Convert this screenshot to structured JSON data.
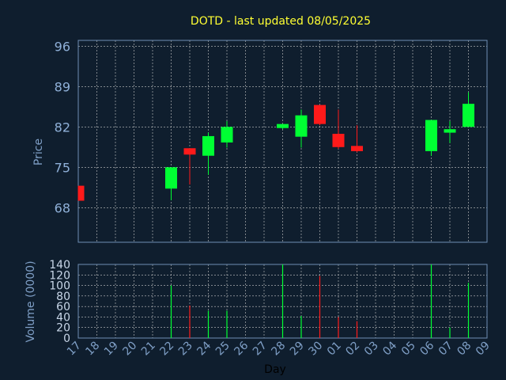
{
  "title": "DOTD - last updated 08/05/2025",
  "colors": {
    "background": "#0f1e2e",
    "up": "#00ff33",
    "down": "#ff1a1a",
    "grid": "#c8c8c8",
    "axis": "#6f8fb4",
    "title": "#ffff33"
  },
  "chart_data": [
    {
      "type": "candlestick",
      "ylabel": "Price",
      "ylim": [
        62,
        97
      ],
      "yticks": [
        68,
        75,
        82,
        89,
        96
      ],
      "grid": true,
      "categories": [
        "17",
        "18",
        "19",
        "20",
        "21",
        "22",
        "23",
        "24",
        "25",
        "26",
        "27",
        "28",
        "29",
        "30",
        "01",
        "02",
        "03",
        "04",
        "05",
        "06",
        "07",
        "08",
        "09"
      ],
      "candles": [
        {
          "day": "17",
          "open": 71.8,
          "close": 69.2,
          "high": 71.8,
          "low": 69.2
        },
        {
          "day": "22",
          "open": 71.3,
          "close": 75.0,
          "high": 75.0,
          "low": 69.3
        },
        {
          "day": "23",
          "open": 78.3,
          "close": 77.2,
          "high": 78.3,
          "low": 72.0
        },
        {
          "day": "24",
          "open": 77.0,
          "close": 80.4,
          "high": 81.0,
          "low": 73.7
        },
        {
          "day": "25",
          "open": 79.3,
          "close": 82.0,
          "high": 83.0,
          "low": 78.4
        },
        {
          "day": "28",
          "open": 81.8,
          "close": 82.5,
          "high": 82.5,
          "low": 81.6
        },
        {
          "day": "29",
          "open": 80.3,
          "close": 84.0,
          "high": 85.0,
          "low": 78.4
        },
        {
          "day": "30",
          "open": 85.8,
          "close": 82.5,
          "high": 85.8,
          "low": 82.3
        },
        {
          "day": "01",
          "open": 80.8,
          "close": 78.5,
          "high": 85.0,
          "low": 78.2
        },
        {
          "day": "02",
          "open": 78.7,
          "close": 77.8,
          "high": 82.3,
          "low": 77.6
        },
        {
          "day": "06",
          "open": 77.8,
          "close": 83.2,
          "high": 83.2,
          "low": 77.0
        },
        {
          "day": "07",
          "open": 81.0,
          "close": 81.6,
          "high": 83.0,
          "low": 79.2
        },
        {
          "day": "08",
          "open": 82.0,
          "close": 86.0,
          "high": 88.0,
          "low": 82.0
        }
      ]
    },
    {
      "type": "bar",
      "ylabel": "Volume (0000)",
      "xlabel": "Day",
      "ylim": [
        0,
        140
      ],
      "yticks": [
        0,
        20,
        40,
        60,
        80,
        100,
        120,
        140
      ],
      "volumes": [
        {
          "day": "22",
          "value": 100,
          "dir": "up"
        },
        {
          "day": "23",
          "value": 62,
          "dir": "down"
        },
        {
          "day": "24",
          "value": 52,
          "dir": "up"
        },
        {
          "day": "25",
          "value": 52,
          "dir": "up"
        },
        {
          "day": "28",
          "value": 140,
          "dir": "up"
        },
        {
          "day": "29",
          "value": 42,
          "dir": "up"
        },
        {
          "day": "30",
          "value": 118,
          "dir": "down"
        },
        {
          "day": "01",
          "value": 40,
          "dir": "down"
        },
        {
          "day": "02",
          "value": 32,
          "dir": "down"
        },
        {
          "day": "06",
          "value": 140,
          "dir": "up"
        },
        {
          "day": "07",
          "value": 20,
          "dir": "up"
        },
        {
          "day": "08",
          "value": 105,
          "dir": "up"
        }
      ]
    }
  ]
}
